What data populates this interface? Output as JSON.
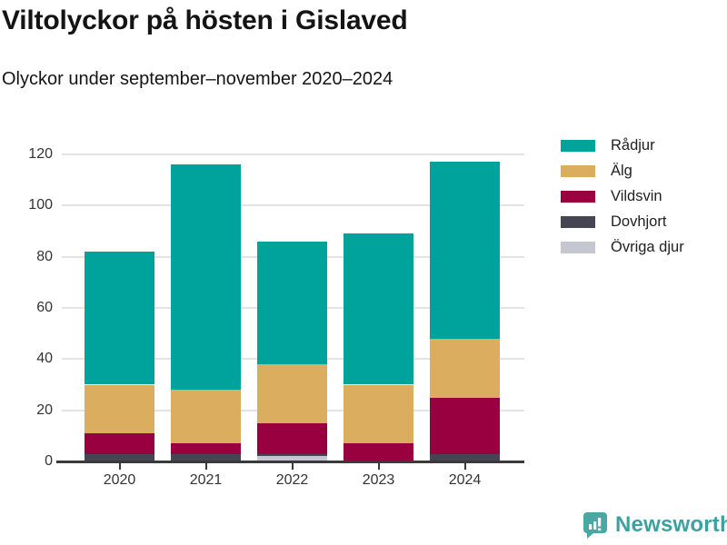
{
  "header": {
    "title": "Viltolyckor på hösten i Gislaved",
    "subtitle": "Olyckor under september–november 2020–2024"
  },
  "footer": {
    "brand": "Newsworthy",
    "brand_color": "#3fa0a1",
    "icon_color": "#4aa7a4"
  },
  "colors": {
    "background": "#ffffff",
    "gridline": "#e3e3e3",
    "axis": "#3a3a3a",
    "text": "#333333",
    "title": "#141414"
  },
  "chart_data": {
    "type": "bar",
    "stacked": true,
    "title": "Viltolyckor på hösten i Gislaved",
    "subtitle": "Olyckor under september–november 2020–2024",
    "categories": [
      "2020",
      "2021",
      "2022",
      "2023",
      "2024"
    ],
    "series": [
      {
        "name": "Rådjur",
        "color": "#00a39b",
        "values": [
          52,
          88,
          48,
          59,
          69
        ]
      },
      {
        "name": "Älg",
        "color": "#dbad5f",
        "values": [
          19,
          21,
          23,
          23,
          23
        ]
      },
      {
        "name": "Vildsvin",
        "color": "#990040",
        "values": [
          8,
          4,
          12,
          7,
          22
        ]
      },
      {
        "name": "Dovhjort",
        "color": "#454554",
        "values": [
          3,
          3,
          1,
          0,
          3
        ]
      },
      {
        "name": "Övriga djur",
        "color": "#c6c6d2",
        "values": [
          0,
          0,
          2,
          0,
          0
        ]
      }
    ],
    "totals": [
      82,
      116,
      86,
      89,
      117
    ],
    "stack_order_bottom_to_top": [
      "Övriga djur",
      "Dovhjort",
      "Vildsvin",
      "Älg",
      "Rådjur"
    ],
    "xlabel": "",
    "ylabel": "",
    "ylim": [
      0,
      120
    ],
    "yticks": [
      0,
      20,
      40,
      60,
      80,
      100,
      120
    ],
    "grid": true,
    "legend_position": "right"
  }
}
